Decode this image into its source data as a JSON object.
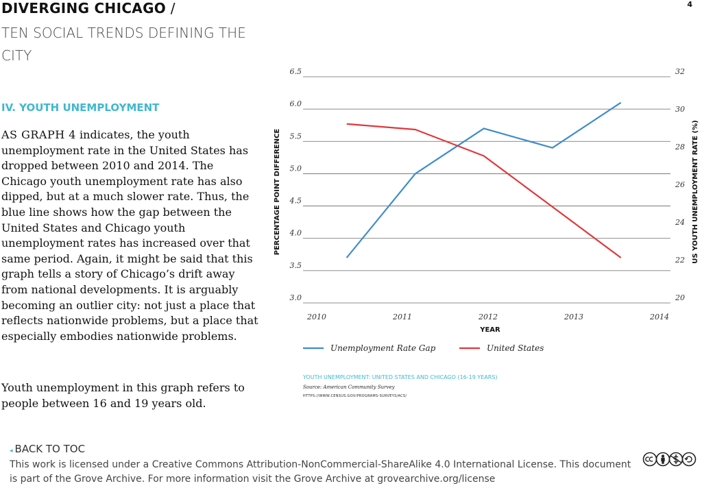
{
  "header": {
    "title": "DIVERGING CHICAGO",
    "slash": " /",
    "subtitle": "TEN SOCIAL TRENDS DEFINING THE CITY",
    "page_number": "4"
  },
  "section": {
    "heading": "IV. YOUTH UNEMPLOYMENT",
    "para1_lead": "AS GRAPH 4",
    "para1_rest": " indicates, the youth unemployment rate in the United States has dropped between 2010 and 2014. The Chicago youth unemployment rate has also dipped, but at a much slower rate. Thus, the blue line shows how the gap between the United States and Chicago youth unemployment rates has increased over that same period. Again, it might be said that this graph tells a story of Chicago’s drift away from national developments. It is arguably becoming an outlier city: not just a place that reflects nationwide problems, but a place that especially embodies nationwide problems.",
    "para2": "Youth unemployment in this graph refers to people between 16 and 19 years old."
  },
  "chart_data": {
    "type": "line",
    "xlabel": "YEAR",
    "ylabel_left": "PERCENTAGE POINT DIFFERENCE",
    "ylabel_right": "US YOUTH UNEMPLOYMENT RATE (%)",
    "x_ticks": [
      "2010",
      "2011",
      "2012",
      "2013",
      "2014"
    ],
    "xlim": [
      2010,
      2014
    ],
    "ylim_left": [
      3.0,
      6.5
    ],
    "ylim_right": [
      20,
      32
    ],
    "left_ticks": [
      "3.0",
      "3.5",
      "4.0",
      "4.5",
      "5.0",
      "5.5",
      "6.0",
      "6.5"
    ],
    "right_ticks": [
      "20",
      "22",
      "24",
      "26",
      "28",
      "30",
      "32"
    ],
    "grid": true,
    "legend_position": "bottom",
    "series": [
      {
        "name": "Unemployment Rate Gap",
        "axis": "left",
        "color": "#3d8ccb",
        "x": [
          2010.35,
          2011.15,
          2011.95,
          2012.75,
          2013.55
        ],
        "values": [
          3.7,
          5.0,
          5.7,
          5.4,
          6.1
        ]
      },
      {
        "name": "United States",
        "axis": "right",
        "color": "#e0373c",
        "x": [
          2010.35,
          2011.15,
          2011.95,
          2012.75,
          2013.55
        ],
        "values": [
          29.5,
          29.2,
          27.8,
          25.1,
          22.4
        ]
      }
    ]
  },
  "caption": {
    "title": "YOUTH UNEMPLOYMENT: UNITED STATES AND CHICAGO (16-19 YEARS)",
    "source": "Source: American Community Survey",
    "url": "HTTPS://WWW.CENSUS.GOV/PROGRAMS-SURVEYS/ACS/"
  },
  "footer": {
    "back_to_toc": "BACK TO TOC",
    "license": "This work is licensed under a Creative Commons Attribution-NonCommercial-ShareAlike 4.0 International License. This document is part of the Grove Archive. For more information visit the Grove Archive at grovearchive.org/license"
  },
  "colors": {
    "accent": "#3fb8cf",
    "gap_line": "#3d8ccb",
    "us_line": "#e0373c"
  }
}
